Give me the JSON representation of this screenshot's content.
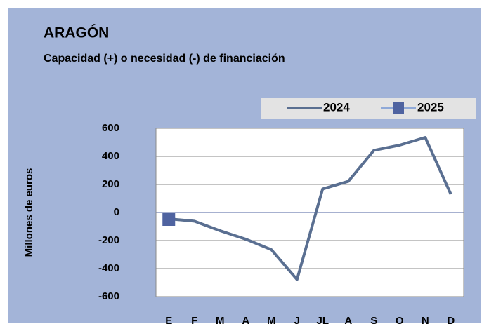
{
  "chart_data": {
    "type": "line",
    "title": "ARAGÓN",
    "subtitle": "Capacidad (+) o necesidad (-) de financiación",
    "y_label": "Millones de euros",
    "categories": [
      "E",
      "F",
      "M",
      "A",
      "M",
      "J",
      "JL",
      "A",
      "S",
      "O",
      "N",
      "D"
    ],
    "series": [
      {
        "name": "2024",
        "color": "#5a6f91",
        "values": [
          -45,
          -62,
          -130,
          -190,
          -265,
          -478,
          168,
          222,
          443,
          480,
          535,
          130
        ]
      },
      {
        "name": "2025",
        "color": "#4f63a0",
        "values": [
          -50,
          null,
          null,
          null,
          null,
          null,
          null,
          null,
          null,
          null,
          null,
          null
        ]
      }
    ],
    "ylim": [
      -600,
      600
    ],
    "yticks": [
      -600,
      -400,
      -200,
      0,
      200,
      400,
      600
    ],
    "grid": true,
    "legend": "top-right"
  }
}
